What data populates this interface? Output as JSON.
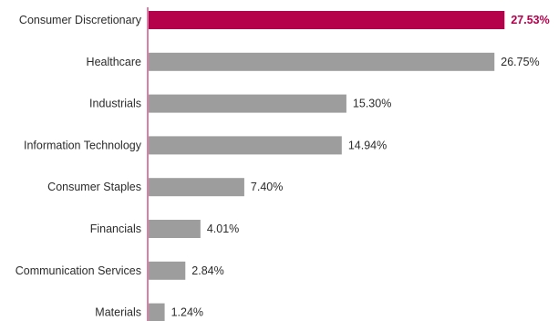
{
  "chart_data": {
    "type": "bar",
    "orientation": "horizontal",
    "categories": [
      "Consumer Discretionary",
      "Healthcare",
      "Industrials",
      "Information Technology",
      "Consumer Staples",
      "Financials",
      "Communication Services",
      "Materials"
    ],
    "values": [
      27.53,
      26.75,
      15.3,
      14.94,
      7.4,
      4.01,
      2.84,
      1.24
    ],
    "value_labels": [
      "27.53%",
      "26.75%",
      "15.30%",
      "14.94%",
      "7.40%",
      "4.01%",
      "2.84%",
      "1.24%"
    ],
    "highlighted_index": 0,
    "xlim": [
      0,
      28
    ],
    "grid": false,
    "legend": "none",
    "title": "",
    "xlabel": "",
    "ylabel": ""
  },
  "colors": {
    "highlight_bar": "#b5004c",
    "bar": "#9d9d9d",
    "highlight_label": "#b5004c",
    "label": "#2b2b2b",
    "axis": "#b5004c"
  }
}
